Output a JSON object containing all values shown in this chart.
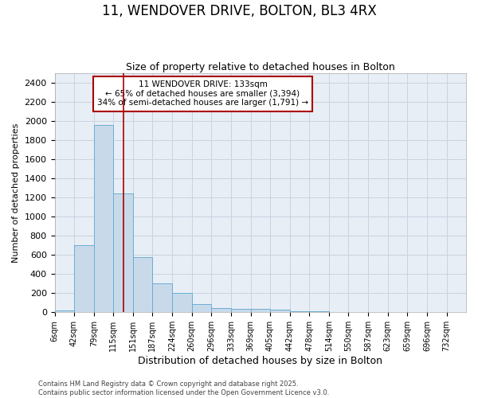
{
  "title1": "11, WENDOVER DRIVE, BOLTON, BL3 4RX",
  "title2": "Size of property relative to detached houses in Bolton",
  "xlabel": "Distribution of detached houses by size in Bolton",
  "ylabel": "Number of detached properties",
  "bin_edges": [
    6,
    42,
    79,
    115,
    151,
    187,
    224,
    260,
    296,
    333,
    369,
    405,
    442,
    478,
    514,
    550,
    587,
    623,
    659,
    696,
    732
  ],
  "bar_heights": [
    20,
    700,
    1960,
    1240,
    575,
    305,
    200,
    85,
    45,
    40,
    35,
    30,
    15,
    10,
    5,
    5,
    5,
    3,
    2,
    2
  ],
  "bar_color": "#c8daea",
  "bar_edge_color": "#6aadd5",
  "bar_edge_width": 0.7,
  "property_line_x": 133,
  "property_line_color": "#aa0000",
  "ylim": [
    0,
    2500
  ],
  "yticks": [
    0,
    200,
    400,
    600,
    800,
    1000,
    1200,
    1400,
    1600,
    1800,
    2000,
    2200,
    2400
  ],
  "annotation_line1": "11 WENDOVER DRIVE: 133sqm",
  "annotation_line2": "← 65% of detached houses are smaller (3,394)",
  "annotation_line3": "34% of semi-detached houses are larger (1,791) →",
  "annotation_box_color": "#aa0000",
  "footer1": "Contains HM Land Registry data © Crown copyright and database right 2025.",
  "footer2": "Contains public sector information licensed under the Open Government Licence v3.0.",
  "bg_color": "#ffffff",
  "plot_bg_color": "#e8eef5",
  "grid_color": "#c8d4e0",
  "title1_fontsize": 12,
  "title2_fontsize": 9,
  "xlabel_fontsize": 9,
  "ylabel_fontsize": 8,
  "xtick_fontsize": 7,
  "ytick_fontsize": 8,
  "footer_fontsize": 6
}
